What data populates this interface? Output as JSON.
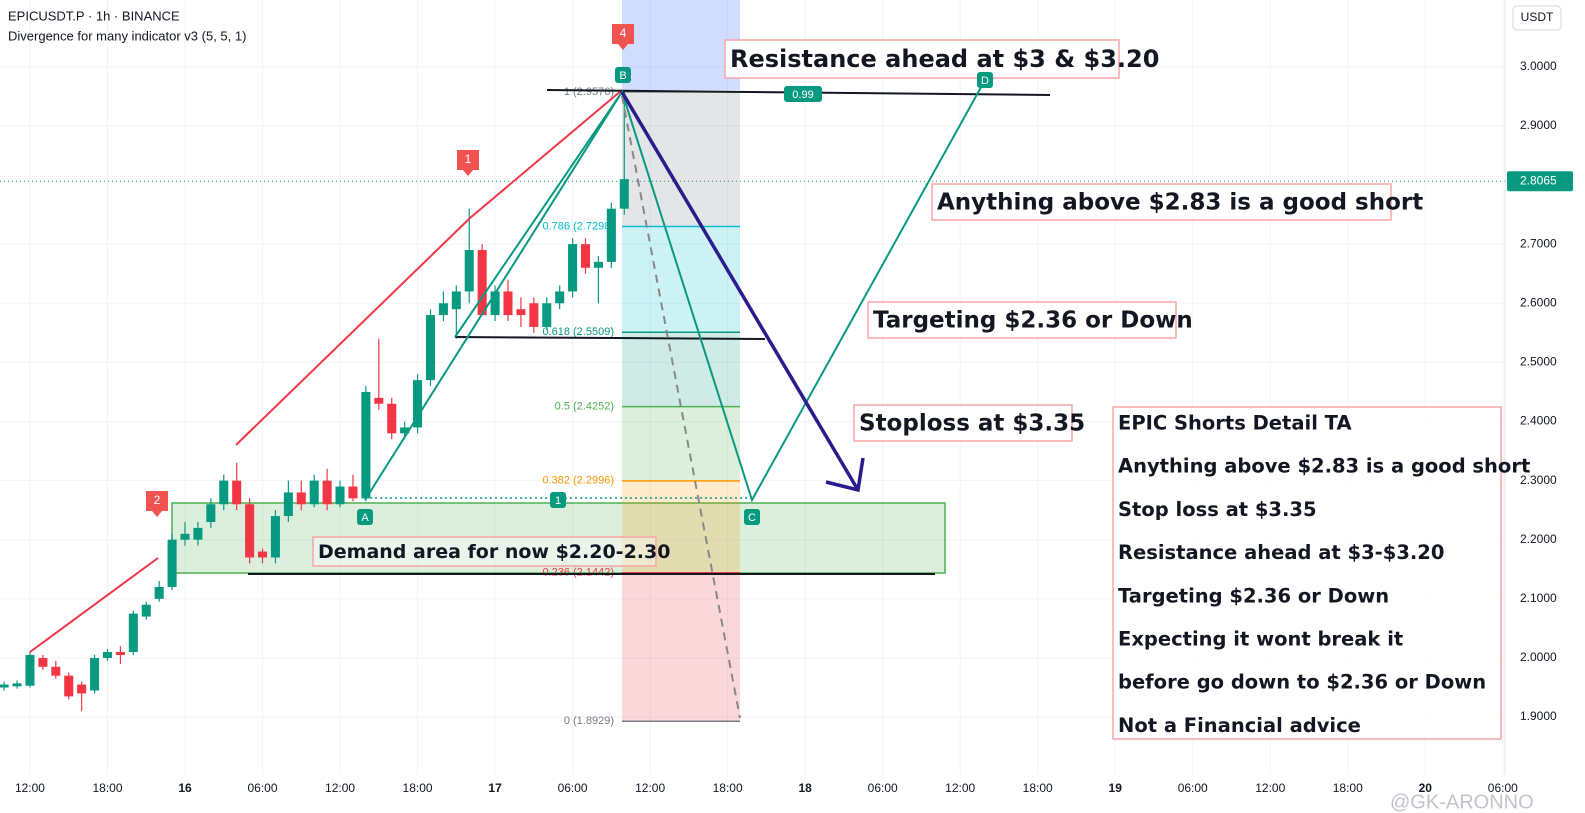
{
  "header": {
    "symbol": "EPICUSDT.P · 1h · BINANCE",
    "indicator": "Divergence for many indicator v3 (5, 5, 1)",
    "currency": "USDT"
  },
  "chart_data": {
    "type": "candlestick",
    "x": [
      -2,
      -1,
      0,
      1,
      2,
      3,
      4,
      5,
      6,
      7,
      8,
      9,
      10,
      11,
      12,
      13,
      14,
      15,
      16,
      17,
      18,
      19,
      20,
      21,
      22,
      23,
      24,
      25,
      26,
      27,
      28,
      29,
      30,
      31,
      32,
      33,
      34,
      35,
      36,
      37,
      38,
      39,
      40,
      41,
      42,
      43,
      44,
      45,
      46
    ],
    "open": [
      1.95,
      1.952,
      1.953,
      2.0,
      1.985,
      1.97,
      1.955,
      1.945,
      2.0,
      2.01,
      2.01,
      2.07,
      2.1,
      2.12,
      2.2,
      2.2,
      2.23,
      2.26,
      2.3,
      2.26,
      2.18,
      2.17,
      2.24,
      2.28,
      2.26,
      2.3,
      2.26,
      2.29,
      2.27,
      2.44,
      2.43,
      2.38,
      2.39,
      2.47,
      2.58,
      2.59,
      2.62,
      2.69,
      2.58,
      2.62,
      2.59,
      2.6,
      2.56,
      2.6,
      2.62,
      2.7,
      2.66,
      2.67,
      2.76
    ],
    "high": [
      1.96,
      1.962,
      2.01,
      2.005,
      1.995,
      1.975,
      1.96,
      2.005,
      2.015,
      2.02,
      2.08,
      2.095,
      2.13,
      2.21,
      2.23,
      2.23,
      2.27,
      2.31,
      2.33,
      2.27,
      2.185,
      2.25,
      2.3,
      2.3,
      2.31,
      2.32,
      2.3,
      2.31,
      2.46,
      2.54,
      2.44,
      2.4,
      2.48,
      2.59,
      2.62,
      2.63,
      2.76,
      2.7,
      2.63,
      2.64,
      2.61,
      2.61,
      2.61,
      2.63,
      2.71,
      2.71,
      2.68,
      2.77,
      2.957
    ],
    "low": [
      1.945,
      1.948,
      1.95,
      1.98,
      1.965,
      1.93,
      1.91,
      1.94,
      1.995,
      1.99,
      2.005,
      2.065,
      2.095,
      2.115,
      2.19,
      2.19,
      2.22,
      2.25,
      2.25,
      2.16,
      2.16,
      2.16,
      2.23,
      2.25,
      2.255,
      2.25,
      2.255,
      2.265,
      2.265,
      2.42,
      2.37,
      2.37,
      2.38,
      2.46,
      2.57,
      2.54,
      2.6,
      2.58,
      2.57,
      2.57,
      2.56,
      2.55,
      2.555,
      2.59,
      2.61,
      2.65,
      2.6,
      2.66,
      2.75
    ],
    "close": [
      1.955,
      1.957,
      2.005,
      1.985,
      1.97,
      1.935,
      1.94,
      2.0,
      2.01,
      2.005,
      2.075,
      2.09,
      2.12,
      2.2,
      2.21,
      2.22,
      2.26,
      2.3,
      2.26,
      2.17,
      2.17,
      2.24,
      2.28,
      2.26,
      2.3,
      2.26,
      2.29,
      2.27,
      2.45,
      2.43,
      2.38,
      2.39,
      2.47,
      2.58,
      2.6,
      2.62,
      2.69,
      2.58,
      2.62,
      2.58,
      2.58,
      2.56,
      2.6,
      2.62,
      2.7,
      2.66,
      2.67,
      2.76,
      2.81
    ],
    "up_color": "#089981",
    "down_color": "#f23645",
    "xlim": [
      -2.32,
      114.17
    ],
    "xticks": [
      {
        "value": 0,
        "label": "12:00"
      },
      {
        "value": 6,
        "label": "18:00"
      },
      {
        "value": 12,
        "label": "16"
      },
      {
        "value": 18,
        "label": "06:00"
      },
      {
        "value": 24,
        "label": "12:00"
      },
      {
        "value": 30,
        "label": "18:00"
      },
      {
        "value": 36,
        "label": "17"
      },
      {
        "value": 42,
        "label": "06:00"
      },
      {
        "value": 48,
        "label": "12:00"
      },
      {
        "value": 54,
        "label": "18:00"
      },
      {
        "value": 60,
        "label": "18"
      },
      {
        "value": 66,
        "label": "06:00"
      },
      {
        "value": 72,
        "label": "12:00"
      },
      {
        "value": 78,
        "label": "18:00"
      },
      {
        "value": 84,
        "label": "19"
      },
      {
        "value": 90,
        "label": "06:00"
      },
      {
        "value": 96,
        "label": "12:00"
      },
      {
        "value": 102,
        "label": "18:00"
      },
      {
        "value": 108,
        "label": "20"
      },
      {
        "value": 114,
        "label": "06:00"
      }
    ],
    "ylim": [
      1.802,
      3.113
    ],
    "yticks": [
      {
        "value": 3.0,
        "label": "3.0000"
      },
      {
        "value": 2.9,
        "label": "2.9000"
      },
      {
        "value": 2.7,
        "label": "2.7000"
      },
      {
        "value": 2.6,
        "label": "2.6000"
      },
      {
        "value": 2.5,
        "label": "2.5000"
      },
      {
        "value": 2.4,
        "label": "2.4000"
      },
      {
        "value": 2.3,
        "label": "2.3000"
      },
      {
        "value": 2.2,
        "label": "2.2000"
      },
      {
        "value": 2.1,
        "label": "2.1000"
      },
      {
        "value": 2.0,
        "label": "2.0000"
      },
      {
        "value": 1.9,
        "label": "1.9000"
      }
    ],
    "grid": true,
    "current_price": 2.8065,
    "fib_levels": [
      {
        "label": "1 (2.9576)",
        "value": 2.9576,
        "color": "#787b86"
      },
      {
        "label": "0.786 (2.7298)",
        "value": 2.7298,
        "color": "#00bcd4"
      },
      {
        "label": "0.618 (2.5509)",
        "value": 2.5509,
        "color": "#089981"
      },
      {
        "label": "0.5 (2.4252)",
        "value": 2.4252,
        "color": "#4caf50"
      },
      {
        "label": "0.382 (2.2996)",
        "value": 2.2996,
        "color": "#ff9800"
      },
      {
        "label": "0.236 (2.1442)",
        "value": 2.1442,
        "color": "#f23645"
      },
      {
        "label": "0 (1.8929)",
        "value": 1.8929,
        "color": "#787b86"
      }
    ],
    "annotations": [
      "Resistance ahead at $3 & $3.20",
      "Anything above $2.83 is a good short",
      "Targeting $2.36 or Down",
      "Stoploss at $3.35",
      "Demand area for now $2.20-2.30"
    ],
    "markers": [
      "1",
      "2",
      "4",
      "A",
      "B",
      "C",
      "D",
      "1",
      "0.99"
    ],
    "info_box": {
      "lines": [
        "EPIC Shorts Detail TA",
        "Anything above $2.83 is a good short",
        "Stop loss at $3.35",
        "Resistance ahead at $3-$3.20",
        "Targeting $2.36 or Down",
        "Expecting it wont break it",
        "before go down to $2.36 or Down",
        "Not a Financial advice"
      ]
    },
    "watermark": "@GK-ARONNO"
  }
}
